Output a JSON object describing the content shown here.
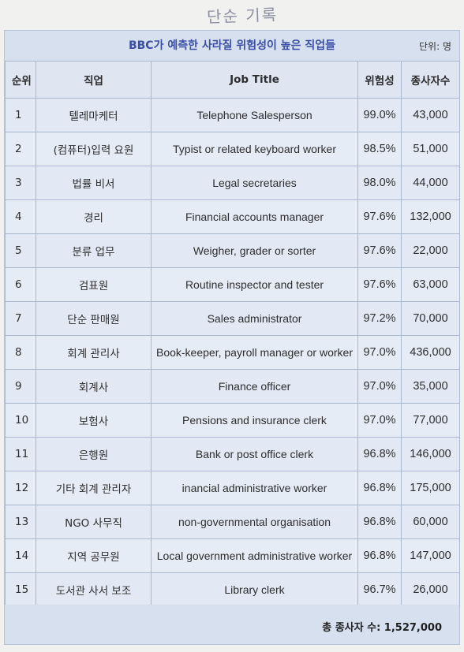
{
  "handwriting": "단순 기록",
  "title": "BBC가 예측한 사라질 위험성이 높은 직업들",
  "unit": "단위: 명",
  "headers": {
    "rank": "순위",
    "job_ko": "직업",
    "job_en": "Job Title",
    "risk": "위험성",
    "workers": "종사자수"
  },
  "rows": [
    {
      "rank": "1",
      "job_ko": "텔레마케터",
      "job_en": "Telephone Salesperson",
      "risk": "99.0%",
      "workers": "43,000"
    },
    {
      "rank": "2",
      "job_ko": "(컴퓨터)입력 요원",
      "job_en": "Typist or related keyboard worker",
      "risk": "98.5%",
      "workers": "51,000"
    },
    {
      "rank": "3",
      "job_ko": "법률 비서",
      "job_en": "Legal secretaries",
      "risk": "98.0%",
      "workers": "44,000"
    },
    {
      "rank": "4",
      "job_ko": "경리",
      "job_en": "Financial accounts manager",
      "risk": "97.6%",
      "workers": "132,000"
    },
    {
      "rank": "5",
      "job_ko": "분류 업무",
      "job_en": "Weigher, grader or sorter",
      "risk": "97.6%",
      "workers": "22,000"
    },
    {
      "rank": "6",
      "job_ko": "검표원",
      "job_en": "Routine inspector and tester",
      "risk": "97.6%",
      "workers": "63,000"
    },
    {
      "rank": "7",
      "job_ko": "단순 판매원",
      "job_en": "Sales administrator",
      "risk": "97.2%",
      "workers": "70,000"
    },
    {
      "rank": "8",
      "job_ko": "회계 관리사",
      "job_en": "Book-keeper, payroll manager or worker",
      "risk": "97.0%",
      "workers": "436,000"
    },
    {
      "rank": "9",
      "job_ko": "회계사",
      "job_en": "Finance officer",
      "risk": "97.0%",
      "workers": "35,000"
    },
    {
      "rank": "10",
      "job_ko": "보험사",
      "job_en": "Pensions and insurance clerk",
      "risk": "97.0%",
      "workers": "77,000"
    },
    {
      "rank": "11",
      "job_ko": "은행원",
      "job_en": "Bank or post office clerk",
      "risk": "96.8%",
      "workers": "146,000"
    },
    {
      "rank": "12",
      "job_ko": "기타 회계 관리자",
      "job_en": "inancial administrative worker",
      "risk": "96.8%",
      "workers": "175,000"
    },
    {
      "rank": "13",
      "job_ko": "NGO 사무직",
      "job_en": "non-governmental organisation",
      "risk": "96.8%",
      "workers": "60,000"
    },
    {
      "rank": "14",
      "job_ko": "지역 공무원",
      "job_en": "Local government administrative worker",
      "risk": "96.8%",
      "workers": "147,000"
    },
    {
      "rank": "15",
      "job_ko": "도서관 사서 보조",
      "job_en": "Library clerk",
      "risk": "96.7%",
      "workers": "26,000"
    }
  ],
  "total": "총 종사자 수: 1,527,000"
}
